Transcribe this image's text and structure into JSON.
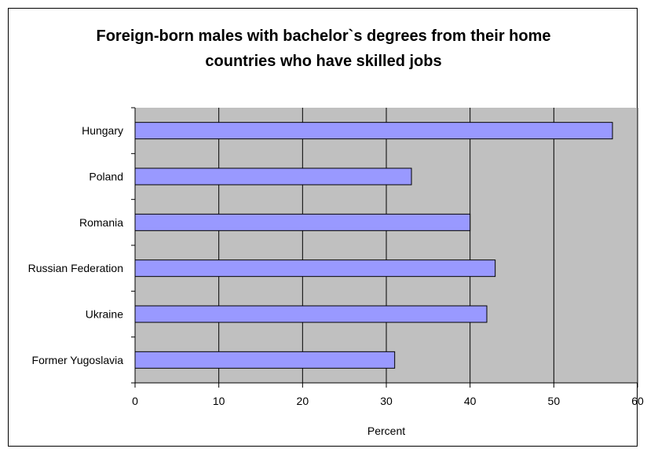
{
  "chart_data": {
    "type": "bar",
    "orientation": "horizontal",
    "title_lines": [
      "Foreign-born males with bachelor`s degrees from their home",
      "countries who have skilled jobs"
    ],
    "categories": [
      "Hungary",
      "Poland",
      "Romania",
      "Russian Federation",
      "Ukraine",
      "Former Yugoslavia"
    ],
    "values": [
      57,
      33,
      40,
      43,
      42,
      31
    ],
    "xlabel": "Percent",
    "ylabel": "",
    "xlim": [
      0,
      60
    ],
    "xticks": [
      "0",
      "10",
      "20",
      "30",
      "40",
      "50",
      "60"
    ],
    "grid": "vertical",
    "legend": "none",
    "colors": {
      "bar_fill": "#9999ff",
      "bar_stroke": "#000000",
      "plot_background": "#c0c0c0",
      "gridline": "#000000"
    }
  }
}
